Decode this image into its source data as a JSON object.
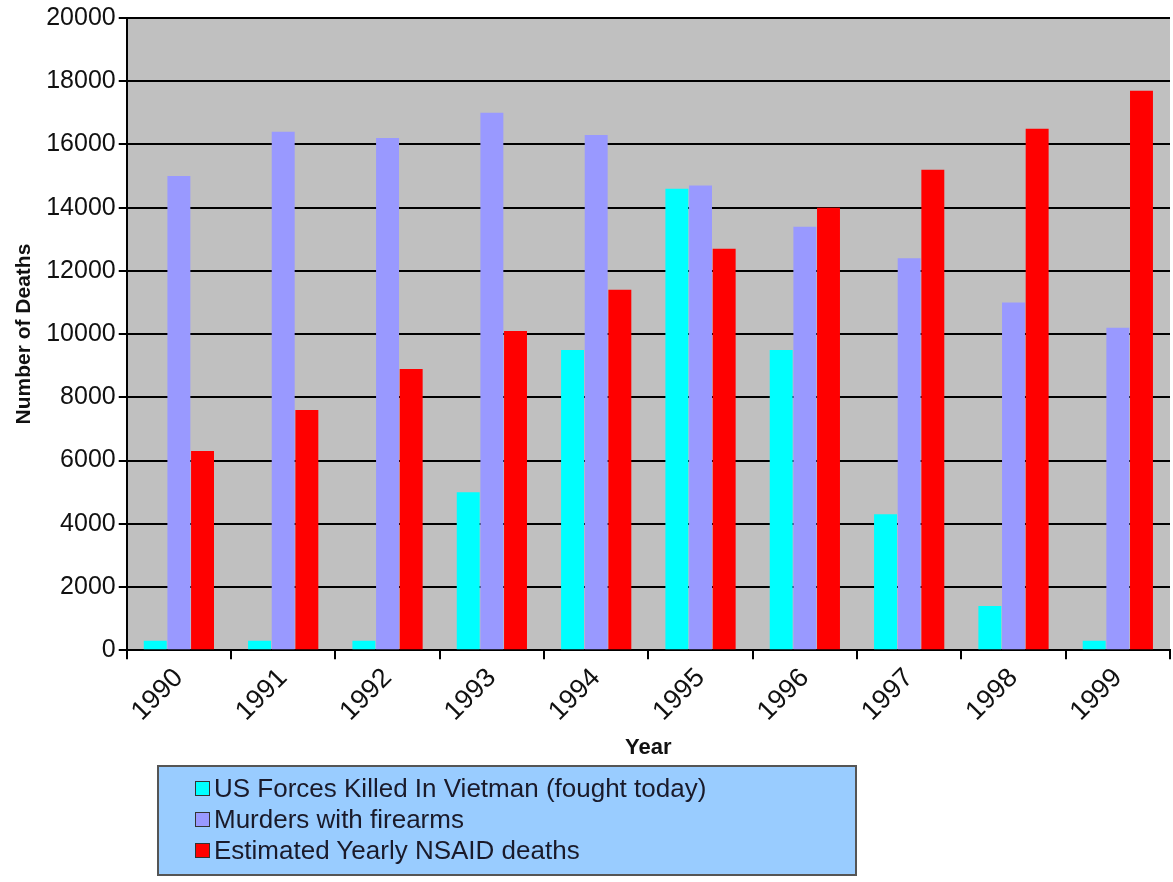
{
  "chart_data": {
    "type": "bar",
    "xlabel": "Year",
    "ylabel": "Number of Deaths",
    "categories": [
      "1990",
      "1991",
      "1992",
      "1993",
      "1994",
      "1995",
      "1996",
      "1997",
      "1998",
      "1999"
    ],
    "series": [
      {
        "name": "US Forces Killed In Vietman (fought today)",
        "color": "#00ffff",
        "values": [
          300,
          300,
          300,
          5000,
          9500,
          14600,
          9500,
          4300,
          1400,
          300
        ]
      },
      {
        "name": "Murders with firearms",
        "color": "#9999ff",
        "values": [
          15000,
          16400,
          16200,
          17000,
          16300,
          14700,
          13400,
          12400,
          11000,
          10200
        ]
      },
      {
        "name": "Estimated Yearly NSAID deaths",
        "color": "#ff0000",
        "values": [
          6300,
          7600,
          8900,
          10100,
          11400,
          12700,
          14000,
          15200,
          16500,
          17700
        ]
      }
    ],
    "ylim": [
      0,
      20000
    ],
    "yticks": [
      0,
      2000,
      4000,
      6000,
      8000,
      10000,
      12000,
      14000,
      16000,
      18000,
      20000
    ],
    "grid": "y",
    "legend": "bottom left"
  }
}
